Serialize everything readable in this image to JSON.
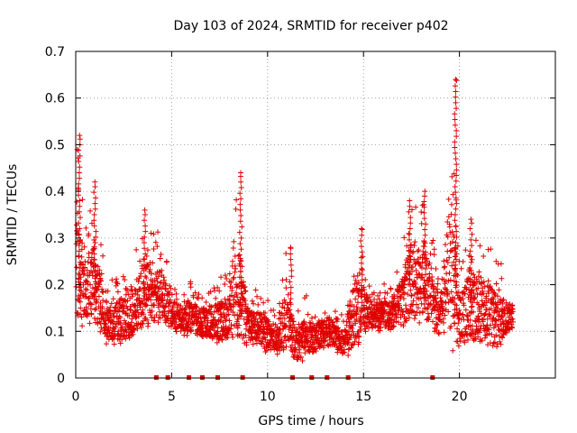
{
  "chart_data": {
    "type": "scatter",
    "title": "Day 103 of 2024, SRMTID for receiver p402",
    "xlabel": "GPS time / hours",
    "ylabel": "SRMTID / TECUs",
    "xlim": [
      0,
      25
    ],
    "ylim": [
      0,
      0.7
    ],
    "xticks": [
      0,
      5,
      10,
      15,
      20
    ],
    "yticks": [
      0,
      0.1,
      0.2,
      0.3,
      0.4,
      0.5,
      0.6,
      0.7
    ],
    "xtick_labels": [
      "0",
      "5",
      "10",
      "15",
      "20"
    ],
    "ytick_labels": [
      "0",
      "0.1",
      "0.2",
      "0.3",
      "0.4",
      "0.5",
      "0.6",
      "0.7"
    ],
    "grid": true,
    "marker": "+",
    "color": "#e00000",
    "series": [
      {
        "name": "SRMTID",
        "envelope_hours": [
          0,
          0.5,
          1,
          1.5,
          2,
          2.5,
          3,
          3.5,
          4,
          4.5,
          5,
          5.5,
          6,
          6.5,
          7,
          7.5,
          8,
          8.5,
          9,
          9.5,
          10,
          10.5,
          11,
          11.5,
          12,
          12.5,
          13,
          13.5,
          14,
          14.5,
          15,
          15.5,
          16,
          16.5,
          17,
          17.5,
          18,
          18.5,
          19,
          19.5,
          20,
          20.5,
          21,
          21.5,
          22,
          22.5,
          22.8
        ],
        "envelope_low": [
          0.08,
          0.12,
          0.09,
          0.07,
          0.07,
          0.07,
          0.08,
          0.09,
          0.09,
          0.1,
          0.1,
          0.09,
          0.09,
          0.08,
          0.08,
          0.07,
          0.07,
          0.05,
          0.06,
          0.06,
          0.05,
          0.05,
          0.05,
          0.03,
          0.04,
          0.05,
          0.06,
          0.06,
          0.04,
          0.05,
          0.09,
          0.1,
          0.1,
          0.1,
          0.1,
          0.11,
          0.11,
          0.1,
          0.08,
          0.06,
          0.05,
          0.06,
          0.06,
          0.06,
          0.04,
          0.09,
          0.1
        ],
        "envelope_high": [
          0.52,
          0.33,
          0.42,
          0.23,
          0.21,
          0.24,
          0.25,
          0.36,
          0.33,
          0.3,
          0.2,
          0.2,
          0.21,
          0.19,
          0.2,
          0.22,
          0.23,
          0.44,
          0.2,
          0.2,
          0.17,
          0.15,
          0.28,
          0.14,
          0.18,
          0.15,
          0.19,
          0.15,
          0.13,
          0.32,
          0.26,
          0.19,
          0.2,
          0.22,
          0.28,
          0.41,
          0.4,
          0.33,
          0.22,
          0.64,
          0.25,
          0.34,
          0.32,
          0.29,
          0.26,
          0.22,
          0.19
        ],
        "peaks": [
          {
            "x": 0.2,
            "y": 0.52
          },
          {
            "x": 1.0,
            "y": 0.42
          },
          {
            "x": 3.6,
            "y": 0.36
          },
          {
            "x": 8.6,
            "y": 0.44
          },
          {
            "x": 11.2,
            "y": 0.28
          },
          {
            "x": 14.9,
            "y": 0.32
          },
          {
            "x": 17.4,
            "y": 0.38
          },
          {
            "x": 18.2,
            "y": 0.4
          },
          {
            "x": 19.8,
            "y": 0.64
          },
          {
            "x": 20.6,
            "y": 0.34
          }
        ]
      }
    ],
    "zero_values_hours": [
      4.2,
      4.8,
      5.9,
      6.6,
      7.4,
      8.7,
      11.3,
      12.3,
      13.1,
      14.2,
      18.6
    ]
  }
}
